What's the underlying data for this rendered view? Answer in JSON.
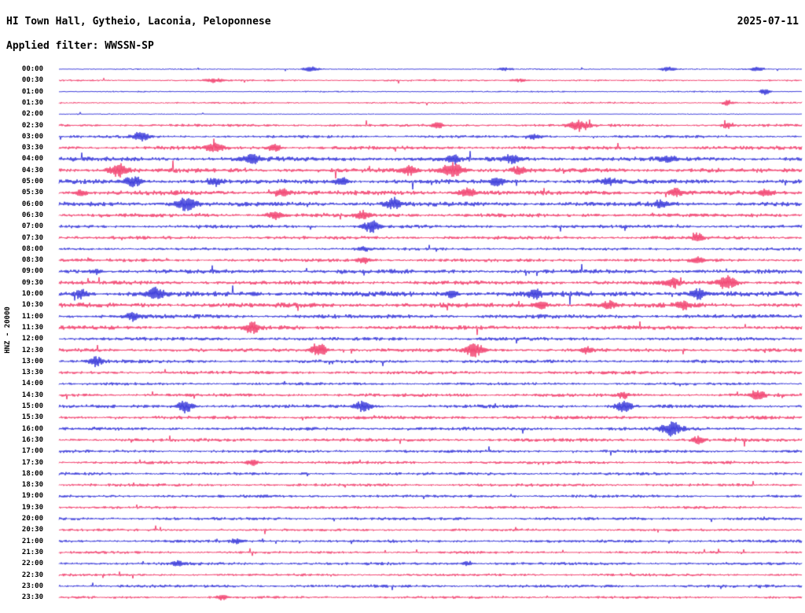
{
  "header": {
    "station_title": "HI Town Hall, Gytheio, Laconia, Peloponnese",
    "date": "2025-07-11",
    "filter_label": "Applied filter: WWSSN-SP"
  },
  "axis": {
    "channel_label": "HNZ - 20000"
  },
  "chart_data": {
    "type": "line",
    "subtype": "helicorder-seismogram",
    "title": "HI Town Hall, Gytheio, Laconia, Peloponnese",
    "date": "2025-07-11",
    "filter": "WWSSN-SP",
    "channel": "HNZ",
    "gain": "20000",
    "minutes_per_row": 30,
    "legend_position": "none",
    "grid": false,
    "colors": {
      "blue": "#0f0fd2",
      "red": "#ef1950"
    },
    "rows": [
      {
        "t": "00:00",
        "c": "blue",
        "n": 0.8,
        "e": [
          [
            0.34,
            2.5,
            8
          ],
          [
            0.6,
            2,
            6
          ],
          [
            0.82,
            2.5,
            7
          ],
          [
            0.94,
            2.5,
            6
          ]
        ]
      },
      {
        "t": "00:30",
        "c": "red",
        "n": 1.0,
        "e": [
          [
            0.21,
            2.5,
            9
          ],
          [
            0.62,
            2,
            7
          ]
        ]
      },
      {
        "t": "01:00",
        "c": "blue",
        "n": 0.8,
        "e": [
          [
            0.95,
            4,
            4
          ]
        ]
      },
      {
        "t": "01:30",
        "c": "red",
        "n": 1.0,
        "e": [
          [
            0.9,
            3,
            5
          ]
        ]
      },
      {
        "t": "02:00",
        "c": "blue",
        "n": 0.6,
        "e": []
      },
      {
        "t": "02:30",
        "c": "red",
        "n": 1.5,
        "e": [
          [
            0.51,
            3.5,
            5
          ],
          [
            0.7,
            6.5,
            9
          ],
          [
            0.9,
            3.5,
            5
          ]
        ]
      },
      {
        "t": "03:00",
        "c": "blue",
        "n": 1.5,
        "e": [
          [
            0.11,
            6,
            7
          ],
          [
            0.64,
            3,
            6
          ]
        ]
      },
      {
        "t": "03:30",
        "c": "red",
        "n": 2.0,
        "e": [
          [
            0.21,
            6,
            7
          ],
          [
            0.29,
            4,
            6
          ]
        ]
      },
      {
        "t": "04:00",
        "c": "blue",
        "n": 2.4,
        "e": [
          [
            0.26,
            6,
            7
          ],
          [
            0.53,
            5,
            6
          ],
          [
            0.61,
            6,
            7
          ],
          [
            0.82,
            4,
            6
          ]
        ]
      },
      {
        "t": "04:30",
        "c": "red",
        "n": 2.4,
        "e": [
          [
            0.08,
            7.5,
            8
          ],
          [
            0.47,
            5.5,
            6
          ],
          [
            0.53,
            9,
            10
          ],
          [
            0.62,
            5,
            6
          ]
        ]
      },
      {
        "t": "05:00",
        "c": "blue",
        "n": 2.4,
        "e": [
          [
            0.1,
            7,
            7
          ],
          [
            0.21,
            5,
            6
          ],
          [
            0.38,
            5,
            6
          ],
          [
            0.59,
            5,
            6
          ],
          [
            0.74,
            4,
            6
          ]
        ]
      },
      {
        "t": "05:30",
        "c": "red",
        "n": 2.4,
        "e": [
          [
            0.03,
            4,
            5
          ],
          [
            0.3,
            5,
            6
          ],
          [
            0.55,
            6,
            7
          ],
          [
            0.83,
            5,
            6
          ],
          [
            0.95,
            4,
            5
          ]
        ]
      },
      {
        "t": "06:00",
        "c": "blue",
        "n": 2.4,
        "e": [
          [
            0.17,
            9,
            9
          ],
          [
            0.45,
            7,
            7
          ],
          [
            0.81,
            4,
            6
          ]
        ]
      },
      {
        "t": "06:30",
        "c": "red",
        "n": 2.0,
        "e": [
          [
            0.29,
            5,
            7
          ],
          [
            0.41,
            5,
            6
          ]
        ]
      },
      {
        "t": "07:00",
        "c": "blue",
        "n": 1.8,
        "e": [
          [
            0.42,
            8,
            7
          ]
        ]
      },
      {
        "t": "07:30",
        "c": "red",
        "n": 1.8,
        "e": [
          [
            0.86,
            5,
            5
          ]
        ]
      },
      {
        "t": "08:00",
        "c": "blue",
        "n": 1.5,
        "e": [
          [
            0.41,
            2.5,
            6
          ]
        ]
      },
      {
        "t": "08:30",
        "c": "red",
        "n": 1.8,
        "e": [
          [
            0.41,
            4,
            6
          ],
          [
            0.86,
            4,
            5
          ]
        ]
      },
      {
        "t": "09:00",
        "c": "blue",
        "n": 2.2,
        "e": [
          [
            0.05,
            3,
            5
          ]
        ]
      },
      {
        "t": "09:30",
        "c": "red",
        "n": 2.2,
        "e": [
          [
            0.825,
            6,
            7
          ],
          [
            0.9,
            8,
            8
          ]
        ]
      },
      {
        "t": "10:00",
        "c": "blue",
        "n": 2.8,
        "e": [
          [
            0.03,
            6,
            6
          ],
          [
            0.13,
            7,
            7
          ],
          [
            0.53,
            4,
            5
          ],
          [
            0.64,
            5,
            6
          ],
          [
            0.86,
            6,
            6
          ]
        ]
      },
      {
        "t": "10:30",
        "c": "red",
        "n": 2.5,
        "e": [
          [
            0.65,
            5,
            6
          ],
          [
            0.74,
            5,
            6
          ],
          [
            0.84,
            5,
            6
          ]
        ]
      },
      {
        "t": "11:00",
        "c": "blue",
        "n": 2.2,
        "e": [
          [
            0.1,
            5,
            6
          ]
        ]
      },
      {
        "t": "11:30",
        "c": "red",
        "n": 2.2,
        "e": [
          [
            0.26,
            7,
            6
          ]
        ]
      },
      {
        "t": "12:00",
        "c": "blue",
        "n": 1.8,
        "e": []
      },
      {
        "t": "12:30",
        "c": "red",
        "n": 2.0,
        "e": [
          [
            0.35,
            8,
            7
          ],
          [
            0.56,
            8,
            8
          ],
          [
            0.71,
            4,
            6
          ]
        ]
      },
      {
        "t": "13:00",
        "c": "blue",
        "n": 1.8,
        "e": [
          [
            0.05,
            6,
            6
          ]
        ]
      },
      {
        "t": "13:30",
        "c": "red",
        "n": 1.8,
        "e": []
      },
      {
        "t": "14:00",
        "c": "blue",
        "n": 1.5,
        "e": []
      },
      {
        "t": "14:30",
        "c": "red",
        "n": 1.8,
        "e": [
          [
            0.76,
            4,
            5
          ],
          [
            0.94,
            6,
            6
          ]
        ]
      },
      {
        "t": "15:00",
        "c": "blue",
        "n": 1.8,
        "e": [
          [
            0.17,
            8,
            7
          ],
          [
            0.41,
            7,
            7
          ],
          [
            0.76,
            8,
            7
          ]
        ]
      },
      {
        "t": "15:30",
        "c": "red",
        "n": 1.8,
        "e": []
      },
      {
        "t": "16:00",
        "c": "blue",
        "n": 1.8,
        "e": [
          [
            0.825,
            9,
            9
          ]
        ]
      },
      {
        "t": "16:30",
        "c": "red",
        "n": 1.8,
        "e": [
          [
            0.86,
            5,
            5
          ]
        ]
      },
      {
        "t": "17:00",
        "c": "blue",
        "n": 1.6,
        "e": []
      },
      {
        "t": "17:30",
        "c": "red",
        "n": 1.6,
        "e": [
          [
            0.26,
            4,
            6
          ]
        ]
      },
      {
        "t": "18:00",
        "c": "blue",
        "n": 1.6,
        "e": []
      },
      {
        "t": "18:30",
        "c": "red",
        "n": 1.6,
        "e": []
      },
      {
        "t": "19:00",
        "c": "blue",
        "n": 1.6,
        "e": []
      },
      {
        "t": "19:30",
        "c": "red",
        "n": 1.4,
        "e": []
      },
      {
        "t": "20:00",
        "c": "blue",
        "n": 1.6,
        "e": []
      },
      {
        "t": "20:30",
        "c": "red",
        "n": 1.4,
        "e": []
      },
      {
        "t": "21:00",
        "c": "blue",
        "n": 1.6,
        "e": [
          [
            0.24,
            3,
            5
          ]
        ]
      },
      {
        "t": "21:30",
        "c": "red",
        "n": 1.4,
        "e": []
      },
      {
        "t": "22:00",
        "c": "blue",
        "n": 1.6,
        "e": [
          [
            0.16,
            4,
            5
          ],
          [
            0.55,
            3,
            5
          ]
        ]
      },
      {
        "t": "22:30",
        "c": "red",
        "n": 1.4,
        "e": []
      },
      {
        "t": "23:00",
        "c": "blue",
        "n": 1.6,
        "e": []
      },
      {
        "t": "23:30",
        "c": "red",
        "n": 1.4,
        "e": [
          [
            0.22,
            3,
            5
          ]
        ]
      }
    ]
  }
}
